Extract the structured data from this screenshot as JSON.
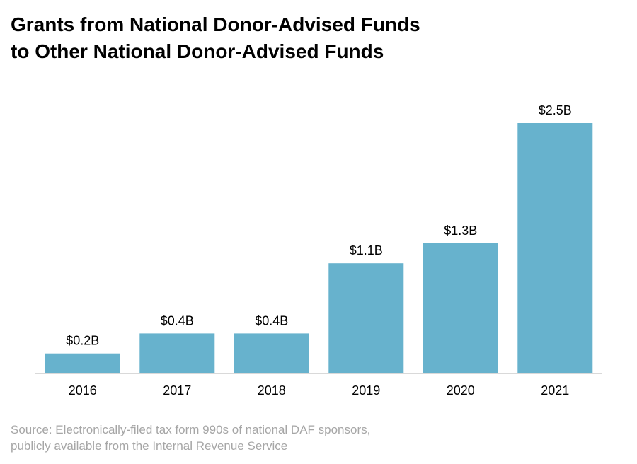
{
  "title": {
    "line1": "Grants from National Donor-Advised Funds",
    "line2": "to Other National Donor-Advised Funds"
  },
  "source": {
    "line1": "Source: Electronically-filed tax form 990s of national DAF sponsors,",
    "line2": "publicly available from the Internal Revenue Service"
  },
  "chart_data": {
    "type": "bar",
    "title": "Grants from National Donor-Advised Funds to Other National Donor-Advised Funds",
    "xlabel": "",
    "ylabel": "",
    "categories": [
      "2016",
      "2017",
      "2018",
      "2019",
      "2020",
      "2021"
    ],
    "values": [
      0.2,
      0.4,
      0.4,
      1.1,
      1.3,
      2.5
    ],
    "data_labels": [
      "$0.2B",
      "$0.4B",
      "$0.4B",
      "$1.1B",
      "$1.3B",
      "$2.5B"
    ],
    "units": "billions USD",
    "ylim": [
      0,
      2.5
    ],
    "grid": false,
    "bar_color": "#67b2cd",
    "axis_color": "#d9d9d9"
  }
}
